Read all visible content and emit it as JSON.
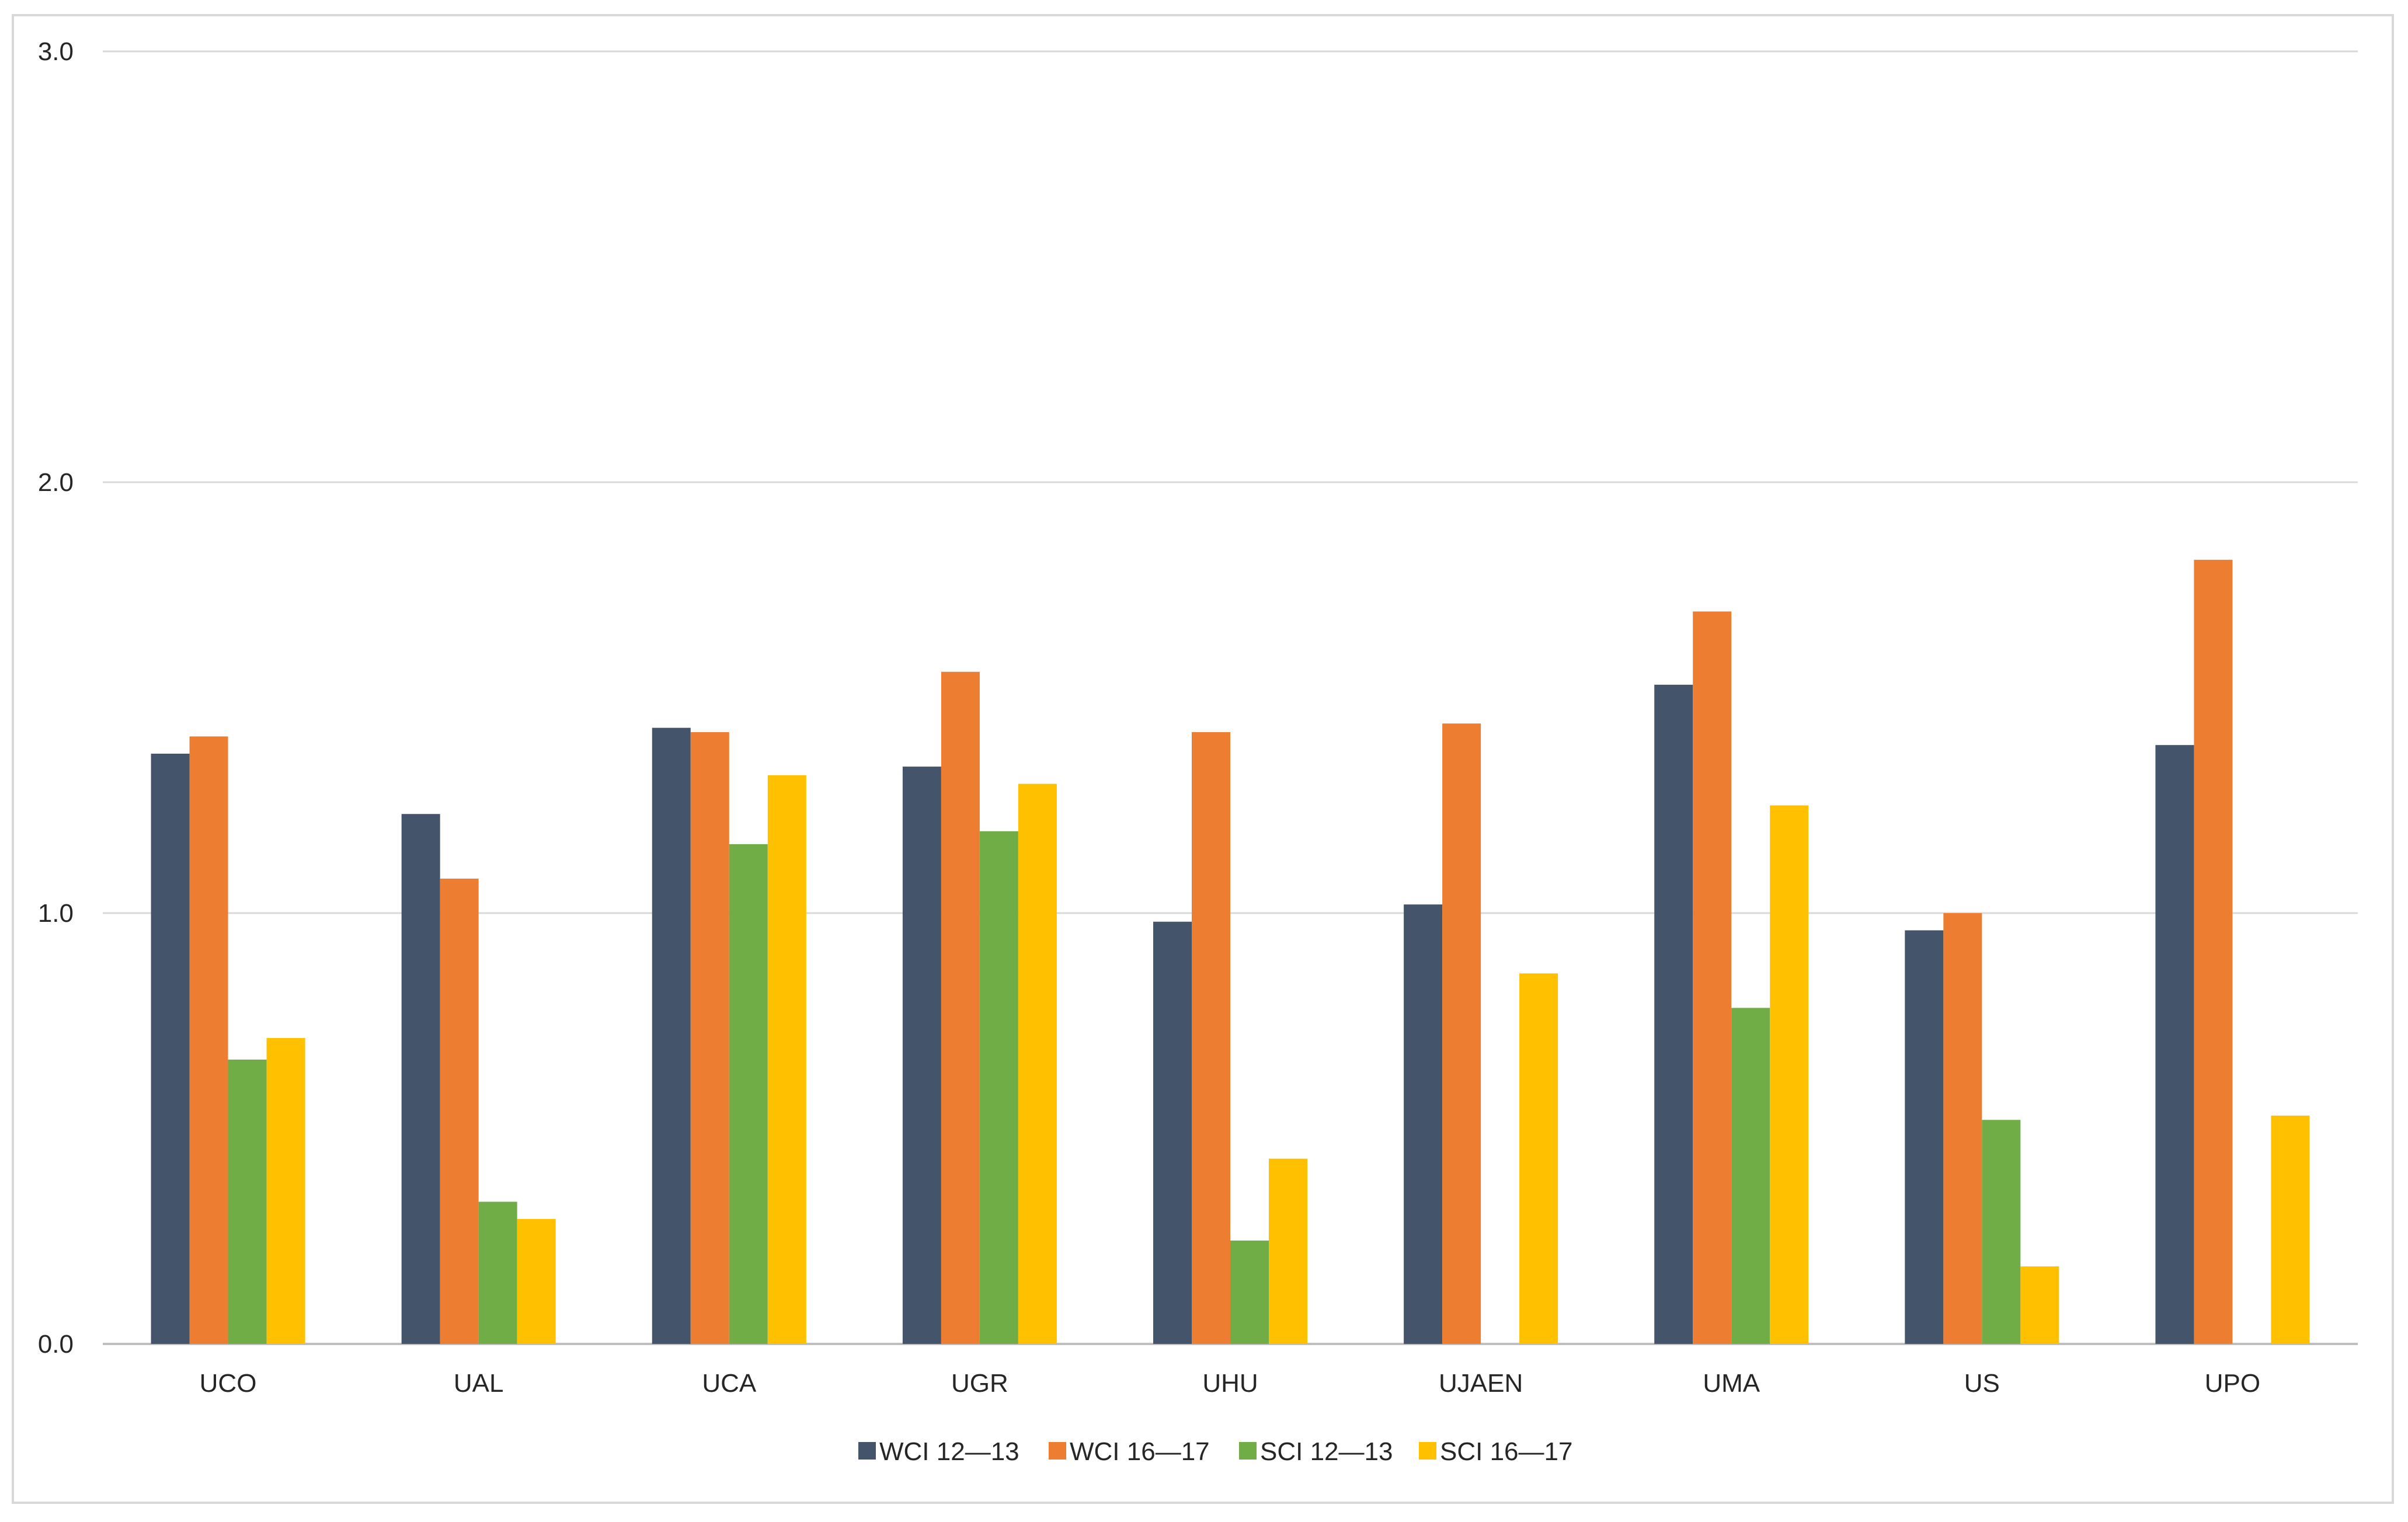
{
  "chart_data": {
    "type": "bar",
    "title": "",
    "xlabel": "",
    "ylabel": "",
    "ylim": [
      0,
      3
    ],
    "yticks": [
      "0.0",
      "1.0",
      "2.0",
      "3.0"
    ],
    "grid": true,
    "legend_position": "bottom",
    "categories": [
      "UCO",
      "UAL",
      "UCA",
      "UGR",
      "UHU",
      "UJAEN",
      "UMA",
      "US",
      "UPO"
    ],
    "series": [
      {
        "name": "WCI 12—13",
        "color": "#44546a",
        "values": [
          1.37,
          1.23,
          1.43,
          1.34,
          0.98,
          1.02,
          1.53,
          0.96,
          1.39
        ]
      },
      {
        "name": "WCI 16—17",
        "color": "#ed7d31",
        "values": [
          1.41,
          1.08,
          1.42,
          1.56,
          1.42,
          1.44,
          1.7,
          1.0,
          1.82
        ]
      },
      {
        "name": "SCI 12—13",
        "color": "#70ad47",
        "values": [
          0.66,
          0.33,
          1.16,
          1.19,
          0.24,
          0.0,
          0.78,
          0.52,
          0.0
        ]
      },
      {
        "name": "SCI 16—17",
        "color": "#ffc000",
        "values": [
          0.71,
          0.29,
          1.32,
          1.3,
          0.43,
          0.86,
          1.25,
          0.18,
          0.53
        ]
      }
    ]
  }
}
